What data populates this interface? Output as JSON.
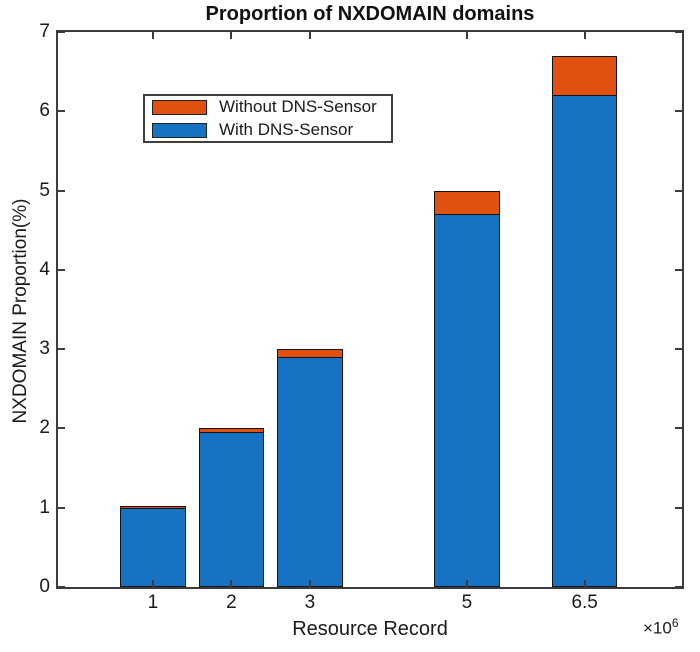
{
  "figure": {
    "x_multiplier_base": "×10",
    "x_multiplier_exp": "6"
  },
  "chart_data": {
    "type": "bar",
    "stacked": true,
    "title": "Proportion of NXDOMAIN domains",
    "xlabel": "Resource Record",
    "ylabel": "NXDOMAIN Proportion(%)",
    "x_axis_unit": "×10^6",
    "x": [
      1,
      2,
      3,
      5,
      6.5
    ],
    "x_tick_labels": [
      "1",
      "2",
      "3",
      "5",
      "6.5"
    ],
    "y_ticks": [
      0,
      1,
      2,
      3,
      4,
      5,
      6,
      7
    ],
    "series": [
      {
        "name": "With DNS-Sensor",
        "color": "#1673C4",
        "values": [
          1.0,
          1.95,
          2.9,
          4.7,
          6.2
        ]
      },
      {
        "name": "Without DNS-Sensor",
        "color": "#E0500F",
        "values": [
          0.02,
          0.05,
          0.1,
          0.3,
          0.5
        ]
      }
    ],
    "totals": [
      1.02,
      2.0,
      3.0,
      5.0,
      6.7
    ],
    "xlim": [
      -0.21,
      7.74
    ],
    "ylim": [
      0,
      7
    ],
    "bar_width": 0.83,
    "grid": false,
    "legend": {
      "position": "upper-left-inside",
      "entries": [
        {
          "label": "Without DNS-Sensor",
          "color": "#E0500F"
        },
        {
          "label": "With DNS-Sensor",
          "color": "#1673C4"
        }
      ]
    },
    "colors": {
      "with_dns_sensor": "#1673C4",
      "without_dns_sensor": "#E0500F",
      "axis": "#3c3c3c",
      "text": "#1a1a1a",
      "background": "#ffffff"
    }
  }
}
